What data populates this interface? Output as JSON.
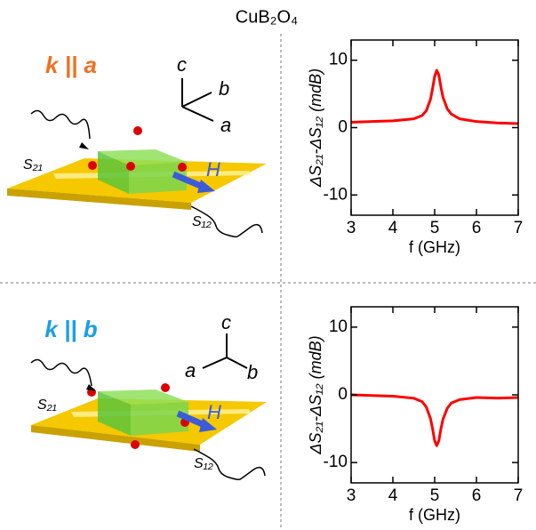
{
  "figure": {
    "title": "CuB₂O₄",
    "panels": [
      {
        "geometry": "k || a",
        "axes": [
          "c",
          "b",
          "a"
        ],
        "input": "S₂₁",
        "output": "S₁₂",
        "field": "H"
      },
      {
        "geometry": "k || b",
        "axes": [
          "c",
          "a",
          "b"
        ],
        "input": "S₂₁",
        "output": "S₁₂",
        "field": "H"
      }
    ]
  },
  "chart_data": [
    {
      "type": "line",
      "xlabel": "f (GHz)",
      "ylabel": "ΔS₂₁-ΔS₁₂ (mdB)",
      "x": [
        3,
        3.5,
        4,
        4.5,
        4.7,
        4.8,
        4.9,
        4.95,
        5.0,
        5.05,
        5.1,
        5.15,
        5.2,
        5.3,
        5.4,
        5.6,
        6,
        6.5,
        7
      ],
      "series": [
        {
          "color": "#ff0000",
          "values": [
            0.8,
            0.9,
            1.0,
            1.3,
            1.8,
            2.5,
            4.2,
            5.8,
            7.6,
            8.5,
            7.8,
            6.0,
            4.5,
            2.8,
            2.0,
            1.3,
            0.9,
            0.7,
            0.6
          ]
        }
      ],
      "xlim": [
        3,
        7
      ],
      "xticks": [
        3,
        4,
        5,
        6,
        7
      ],
      "ylim": [
        -13,
        13
      ],
      "yticks": [
        -10,
        0,
        10
      ]
    },
    {
      "type": "line",
      "xlabel": "f (GHz)",
      "ylabel": "ΔS₂₁-ΔS₁₂ (mdB)",
      "x": [
        3,
        3.5,
        4,
        4.5,
        4.7,
        4.8,
        4.9,
        4.95,
        5.0,
        5.05,
        5.1,
        5.15,
        5.2,
        5.3,
        5.4,
        5.6,
        6,
        6.5,
        7
      ],
      "series": [
        {
          "color": "#ff0000",
          "values": [
            0,
            -0.1,
            -0.2,
            -0.5,
            -1.0,
            -1.8,
            -3.5,
            -5.0,
            -6.8,
            -7.5,
            -6.8,
            -5.0,
            -3.6,
            -2.0,
            -1.2,
            -0.7,
            -0.4,
            -0.5,
            -0.4
          ]
        }
      ],
      "xlim": [
        3,
        7
      ],
      "xticks": [
        3,
        4,
        5,
        6,
        7
      ],
      "ylim": [
        -13,
        13
      ],
      "yticks": [
        -10,
        0,
        10
      ]
    }
  ]
}
